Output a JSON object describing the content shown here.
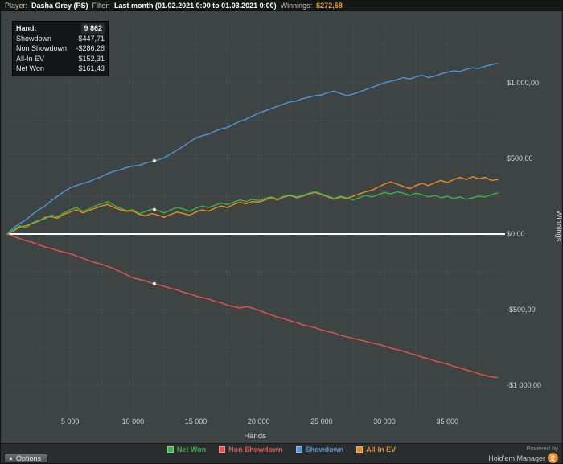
{
  "topbar": {
    "player_label": "Player:",
    "player_value": "Dasha Grey (PS)",
    "filter_label": "Filter:",
    "filter_value": "Last month (01.02.2021 0:00 to 01.03.2021 0:00)",
    "winnings_label": "Winnings:",
    "winnings_value": "$272,58"
  },
  "stats_box": {
    "hand_label": "Hand:",
    "hand_value": "9 862",
    "rows": [
      {
        "label": "Showdown",
        "value": "$447,71"
      },
      {
        "label": "Non Showdown",
        "value": "-$286,28"
      },
      {
        "label": "All-In EV",
        "value": "$152,31"
      },
      {
        "label": "Net Won",
        "value": "$161,43"
      }
    ]
  },
  "chart_data": {
    "type": "line",
    "title": "",
    "xlabel": "Hands",
    "ylabel": "Winnings",
    "xlim": [
      0,
      39000
    ],
    "ylim": [
      -1180,
      1390
    ],
    "x_step": 500,
    "x_grid_step": 2500,
    "x_ticks": [
      5000,
      10000,
      15000,
      20000,
      25000,
      30000,
      35000
    ],
    "x_tick_labels": [
      "5 000",
      "10 000",
      "15 000",
      "20 000",
      "25 000",
      "30 000",
      "35 000"
    ],
    "y_ticks": [
      1000,
      500,
      0,
      -500,
      -1000
    ],
    "y_tick_labels": [
      "$1 000,00",
      "$500,00",
      "$0,00",
      "-$500,00",
      "-$1 000,00"
    ],
    "y_grid_range": [
      -1000,
      1250
    ],
    "y_grid_step": 250,
    "grid_color": "#5d6464",
    "zero_line_color": "#ffffff",
    "legend_position": "bottom",
    "hover": {
      "hand_display": "9 862",
      "marker_hand": 11700,
      "marker_series": [
        0,
        1,
        2
      ]
    },
    "series": [
      {
        "name": "Net Won",
        "color": "#3cb44a",
        "values": [
          0,
          25,
          55,
          40,
          75,
          90,
          100,
          125,
          115,
          140,
          160,
          175,
          150,
          165,
          185,
          200,
          215,
          190,
          170,
          155,
          160,
          135,
          150,
          165,
          155,
          140,
          160,
          175,
          165,
          150,
          170,
          185,
          175,
          190,
          205,
          195,
          210,
          225,
          215,
          230,
          220,
          235,
          245,
          230,
          250,
          260,
          245,
          255,
          270,
          280,
          265,
          250,
          235,
          250,
          240,
          225,
          240,
          255,
          245,
          260,
          275,
          265,
          280,
          270,
          255,
          270,
          260,
          245,
          255,
          240,
          250,
          235,
          245,
          230,
          240,
          250,
          245,
          260,
          272
        ]
      },
      {
        "name": "Non Showdown",
        "color": "#e8534e",
        "values": [
          0,
          -15,
          -30,
          -45,
          -55,
          -70,
          -85,
          -95,
          -110,
          -120,
          -130,
          -145,
          -160,
          -175,
          -190,
          -200,
          -215,
          -230,
          -250,
          -270,
          -290,
          -300,
          -310,
          -325,
          -335,
          -345,
          -360,
          -370,
          -385,
          -395,
          -410,
          -420,
          -430,
          -445,
          -455,
          -470,
          -480,
          -490,
          -480,
          -490,
          -505,
          -520,
          -535,
          -550,
          -560,
          -575,
          -585,
          -600,
          -610,
          -620,
          -635,
          -645,
          -655,
          -670,
          -680,
          -690,
          -700,
          -710,
          -720,
          -730,
          -740,
          -755,
          -765,
          -775,
          -790,
          -800,
          -815,
          -825,
          -840,
          -850,
          -860,
          -875,
          -885,
          -900,
          -910,
          -925,
          -935,
          -945,
          -950
        ]
      },
      {
        "name": "Showdown",
        "color": "#4f97d7",
        "values": [
          0,
          40,
          70,
          95,
          130,
          160,
          185,
          220,
          250,
          280,
          305,
          320,
          335,
          345,
          365,
          380,
          400,
          415,
          425,
          440,
          450,
          455,
          470,
          480,
          490,
          505,
          530,
          555,
          580,
          610,
          635,
          650,
          660,
          680,
          695,
          705,
          725,
          745,
          760,
          780,
          800,
          815,
          830,
          845,
          860,
          875,
          880,
          895,
          905,
          915,
          920,
          935,
          945,
          930,
          915,
          925,
          940,
          955,
          970,
          985,
          1000,
          1010,
          1020,
          1035,
          1025,
          1040,
          1050,
          1035,
          1045,
          1060,
          1070,
          1080,
          1075,
          1090,
          1100,
          1095,
          1110,
          1120,
          1130
        ]
      },
      {
        "name": "All-In EV",
        "color": "#ef8c1f",
        "values": [
          0,
          20,
          45,
          55,
          70,
          85,
          110,
          115,
          105,
          130,
          145,
          160,
          140,
          155,
          170,
          185,
          195,
          175,
          160,
          150,
          152,
          130,
          120,
          135,
          125,
          110,
          130,
          145,
          135,
          125,
          145,
          160,
          150,
          170,
          185,
          175,
          195,
          210,
          200,
          215,
          210,
          225,
          240,
          225,
          245,
          255,
          240,
          250,
          265,
          275,
          260,
          245,
          230,
          245,
          235,
          250,
          265,
          280,
          290,
          310,
          330,
          345,
          330,
          315,
          300,
          320,
          335,
          320,
          340,
          355,
          340,
          360,
          375,
          360,
          380,
          365,
          375,
          355,
          360
        ]
      }
    ]
  },
  "statusbar": {
    "options_label": "Options"
  },
  "powered_by": {
    "line1": "Powered by",
    "line2": "Hold'em Manager",
    "badge": "2"
  }
}
